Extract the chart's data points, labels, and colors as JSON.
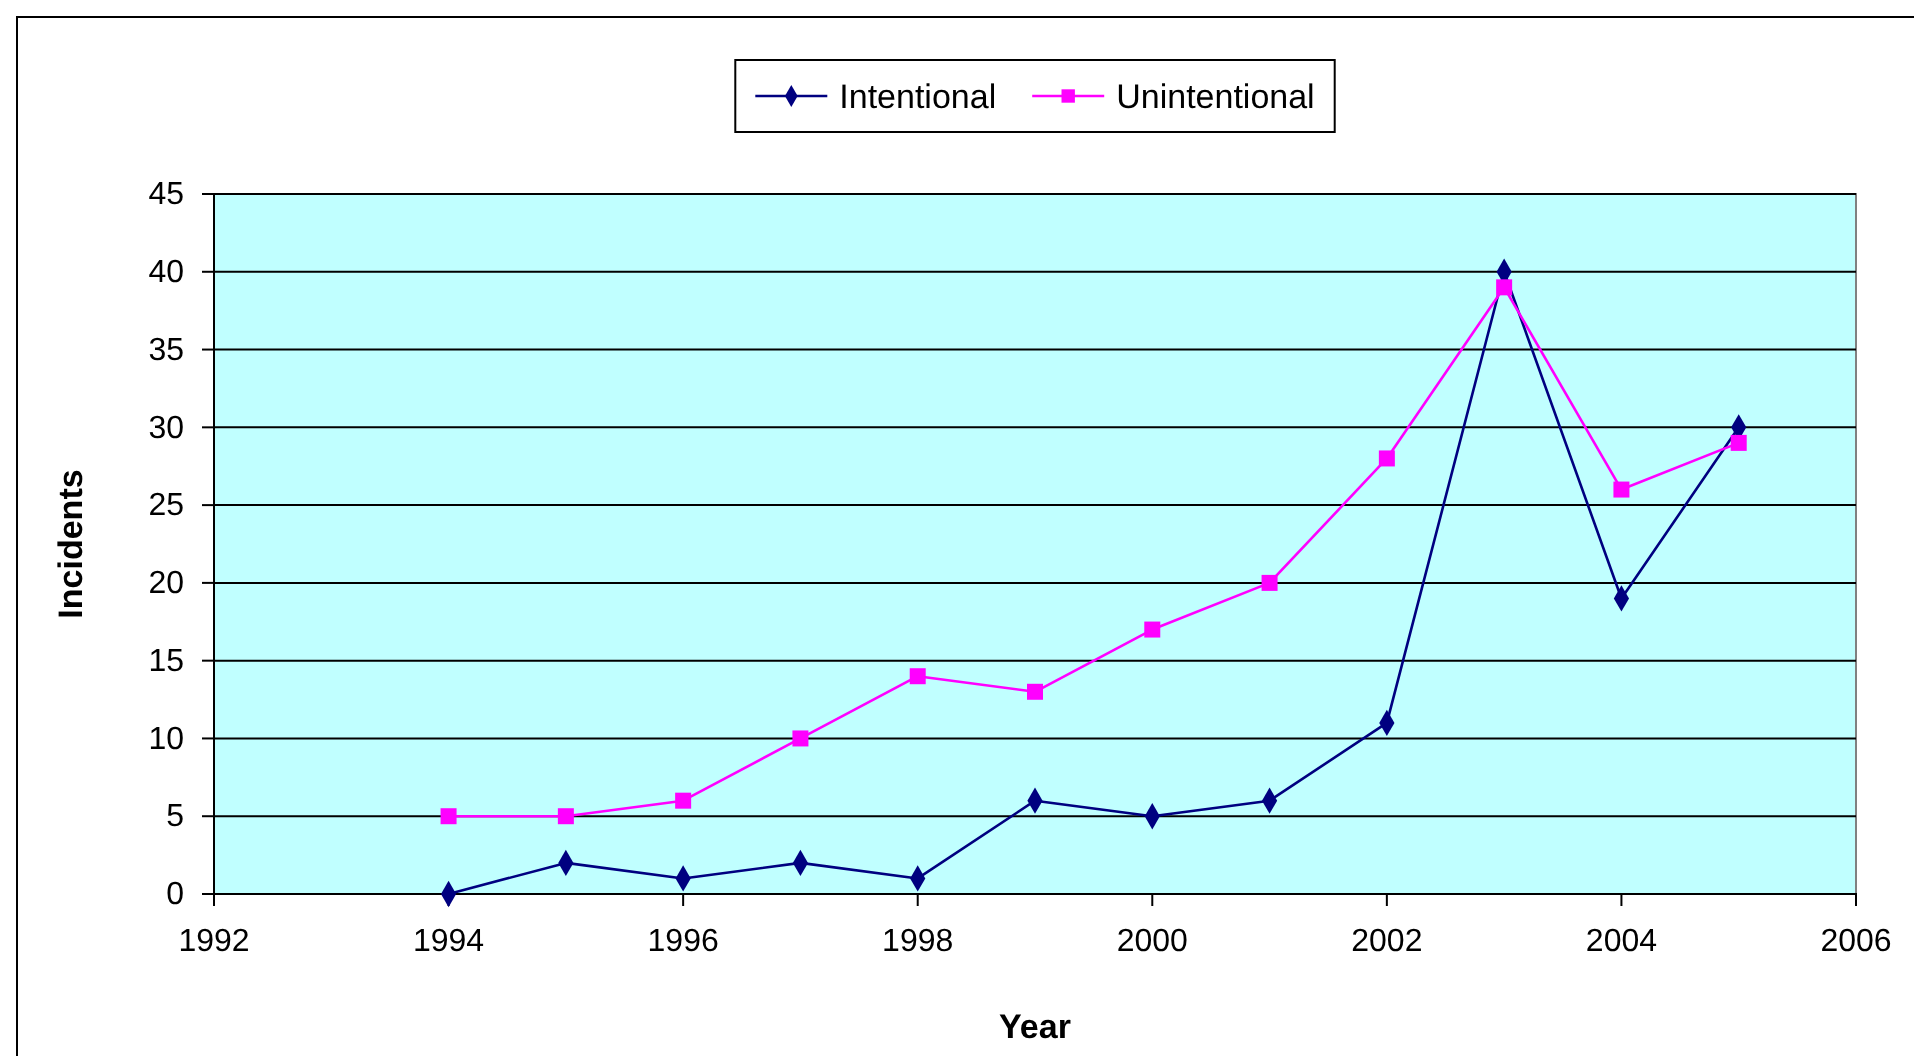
{
  "chart_data": {
    "type": "line",
    "xlabel": "Year",
    "ylabel": "Incidents",
    "x": [
      1994,
      1995,
      1996,
      1997,
      1998,
      1999,
      2000,
      2001,
      2002,
      2003,
      2004,
      2005
    ],
    "series": [
      {
        "name": "Intentional",
        "color": "#000080",
        "marker": "diamond",
        "values": [
          0,
          2,
          1,
          2,
          1,
          6,
          5,
          6,
          11,
          40,
          19,
          30
        ]
      },
      {
        "name": "Unintentional",
        "color": "#ff00ff",
        "marker": "square",
        "values": [
          5,
          5,
          6,
          10,
          14,
          13,
          17,
          20,
          28,
          39,
          26,
          29
        ]
      }
    ],
    "xlim": [
      1992,
      2006
    ],
    "xticks": [
      1992,
      1994,
      1996,
      1998,
      2000,
      2002,
      2004,
      2006
    ],
    "ylim": [
      0,
      45
    ],
    "yticks": [
      0,
      5,
      10,
      15,
      20,
      25,
      30,
      35,
      40,
      45
    ],
    "grid": "y",
    "legend": "top",
    "line_style": "solid"
  }
}
